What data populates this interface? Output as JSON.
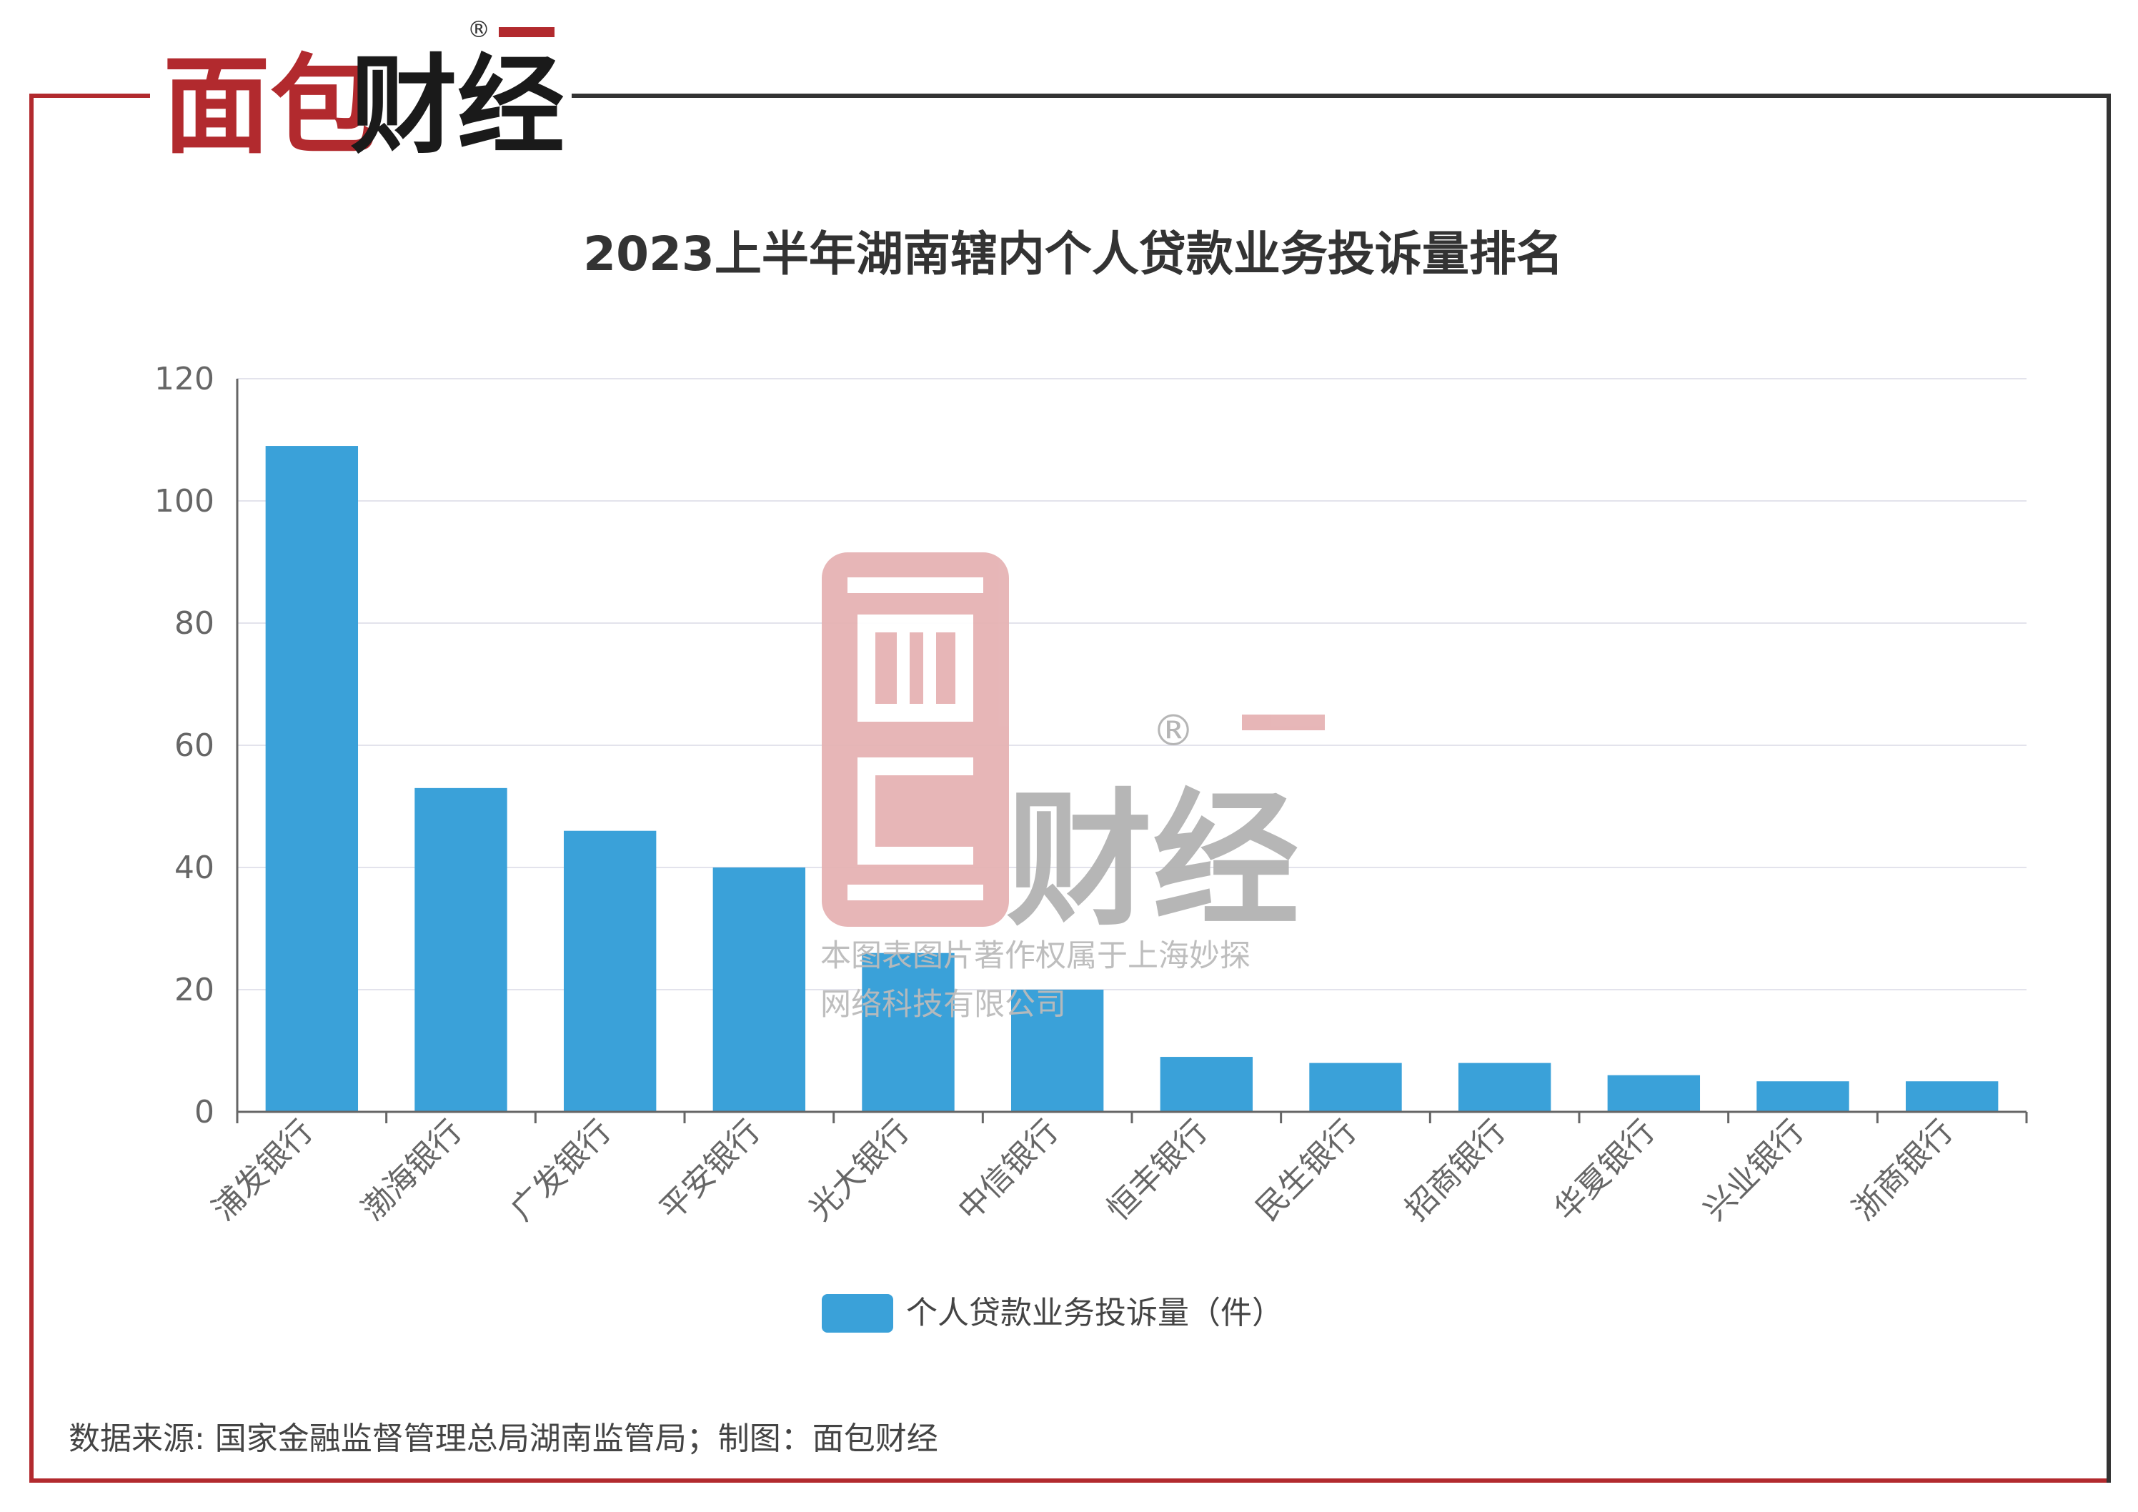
{
  "brand": {
    "name": "面包财经",
    "registered_mark": "®",
    "primary_color": "#b22a2e",
    "dark_color": "#1a1a1a"
  },
  "watermark": {
    "logo_text": "面包财经",
    "registered_mark": "®",
    "notice_line1": "本图表图片著作权属于上海妙探",
    "notice_line2": "网络科技有限公司",
    "color_red": "#e3a9ab",
    "color_gray": "#aaaaaa"
  },
  "chart_data": {
    "type": "bar",
    "title": "2023上半年湖南辖内个人贷款业务投诉量排名",
    "categories": [
      "浦发银行",
      "渤海银行",
      "广发银行",
      "平安银行",
      "光大银行",
      "中信银行",
      "恒丰银行",
      "民生银行",
      "招商银行",
      "华夏银行",
      "兴业银行",
      "浙商银行"
    ],
    "series": [
      {
        "name": "个人贷款业务投诉量（件）",
        "values": [
          109,
          53,
          46,
          40,
          26,
          20,
          9,
          8,
          8,
          6,
          5,
          5
        ],
        "color": "#3aa1d9"
      }
    ],
    "ylim": [
      0,
      120
    ],
    "yticks": [
      "0",
      "20",
      "40",
      "60",
      "80",
      "100",
      "120"
    ],
    "grid": true,
    "legend_position": "bottom-center"
  },
  "footer": {
    "source": "数据来源: 国家金融监督管理总局湖南监管局；制图：面包财经"
  }
}
